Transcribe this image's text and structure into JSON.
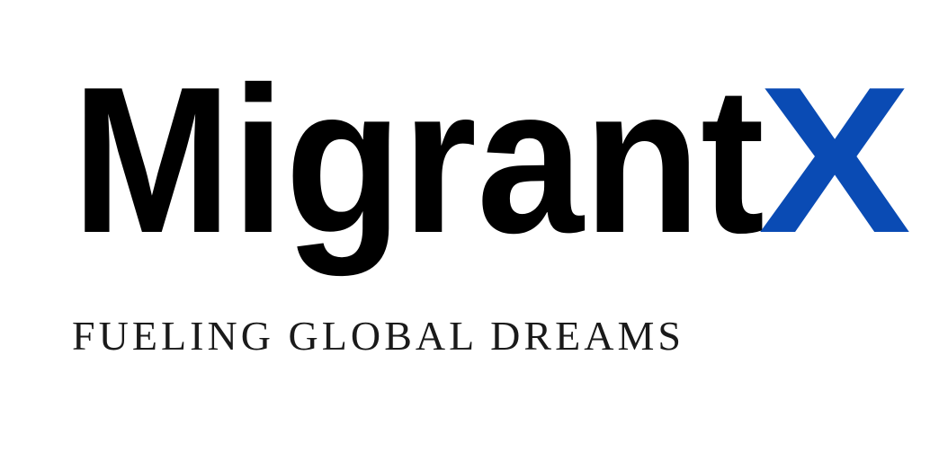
{
  "logo": {
    "name": "Migrant",
    "mark": "X"
  },
  "tagline": "FUELING GLOBAL DREAMS"
}
